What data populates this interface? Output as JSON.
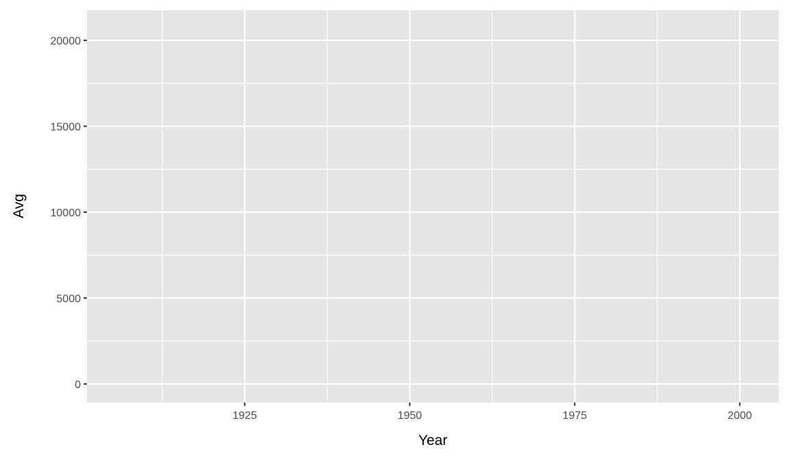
{
  "chart_data": {
    "type": "line",
    "title": "",
    "xlabel": "Year",
    "ylabel": "Avg",
    "xlim": [
      1901.1,
      2005.9
    ],
    "ylim": [
      -1080,
      21750
    ],
    "x_ticks": [
      1925,
      1950,
      1975,
      2000
    ],
    "x_tick_labels": [
      "1925",
      "1950",
      "1975",
      "2000"
    ],
    "y_ticks": [
      0,
      5000,
      10000,
      15000,
      20000
    ],
    "y_tick_labels": [
      "0",
      "5000",
      "10000",
      "15000",
      "20000"
    ],
    "grid": true,
    "panel_background": "#e5e5e5",
    "series": []
  }
}
